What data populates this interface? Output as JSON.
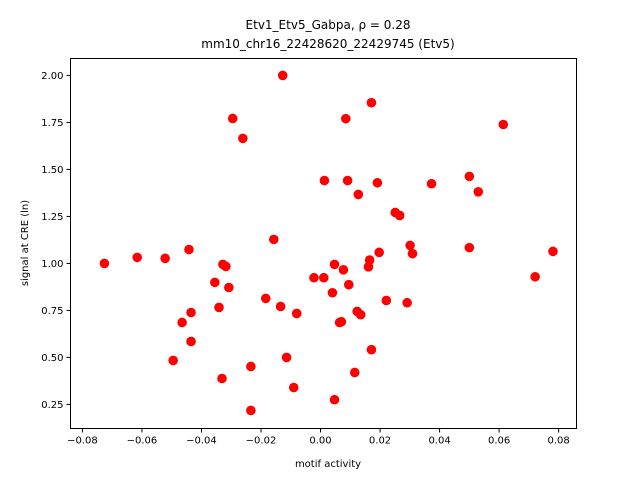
{
  "chart_data": {
    "type": "scatter",
    "title_line1": "Etv1_Etv5_Gabpa, ρ = 0.28",
    "title_line2": "mm10_chr16_22428620_22429745 (Etv5)",
    "xlabel": "motif activity",
    "ylabel": "signal at CRE (ln)",
    "xlim": [
      -0.084,
      0.086
    ],
    "ylim": [
      0.122,
      2.09
    ],
    "xticks": [
      "−0.08",
      "−0.06",
      "−0.04",
      "−0.02",
      "0.00",
      "0.02",
      "0.04",
      "0.06",
      "0.08"
    ],
    "xtick_values": [
      -0.08,
      -0.06,
      -0.04,
      -0.02,
      0,
      0.02,
      0.04,
      0.06,
      0.08
    ],
    "yticks": [
      "0.25",
      "0.50",
      "0.75",
      "1.00",
      "1.25",
      "1.50",
      "1.75",
      "2.00"
    ],
    "ytick_values": [
      0.25,
      0.5,
      0.75,
      1.0,
      1.25,
      1.5,
      1.75,
      2.0
    ],
    "grid": false,
    "marker_color": "#ff0000",
    "points": [
      [
        -0.0726,
        1.0
      ],
      [
        -0.0616,
        1.032
      ],
      [
        -0.0522,
        1.027
      ],
      [
        -0.0442,
        1.074
      ],
      [
        -0.0328,
        0.995
      ],
      [
        -0.0318,
        0.984
      ],
      [
        -0.0355,
        0.899
      ],
      [
        -0.0308,
        0.872
      ],
      [
        -0.0465,
        0.686
      ],
      [
        -0.0435,
        0.739
      ],
      [
        -0.0341,
        0.766
      ],
      [
        -0.0435,
        0.585
      ],
      [
        -0.0495,
        0.484
      ],
      [
        -0.0331,
        0.388
      ],
      [
        -0.0295,
        1.771
      ],
      [
        -0.0261,
        1.665
      ],
      [
        -0.0127,
        2.0
      ],
      [
        -0.0157,
        1.128
      ],
      [
        -0.0184,
        0.814
      ],
      [
        -0.0134,
        0.771
      ],
      [
        -0.008,
        0.734
      ],
      [
        -0.0114,
        0.5
      ],
      [
        -0.0234,
        0.452
      ],
      [
        -0.009,
        0.34
      ],
      [
        -0.0234,
        0.218
      ],
      [
        0.0171,
        1.855
      ],
      [
        0.0085,
        1.77
      ],
      [
        0.0614,
        1.739
      ],
      [
        0.0013,
        1.441
      ],
      [
        0.0091,
        1.441
      ],
      [
        0.0191,
        1.429
      ],
      [
        0.0127,
        1.367
      ],
      [
        0.0373,
        1.424
      ],
      [
        0.05,
        1.463
      ],
      [
        0.053,
        1.381
      ],
      [
        0.0251,
        1.271
      ],
      [
        0.0266,
        1.255
      ],
      [
        0.0301,
        1.096
      ],
      [
        0.0309,
        1.052
      ],
      [
        0.05,
        1.084
      ],
      [
        0.0781,
        1.064
      ],
      [
        0.0721,
        0.929
      ],
      [
        0.0197,
        1.059
      ],
      [
        0.0165,
        1.018
      ],
      [
        0.0161,
        0.982
      ],
      [
        0.0047,
        0.995
      ],
      [
        0.0077,
        0.966
      ],
      [
        -0.0022,
        0.924
      ],
      [
        0.0011,
        0.924
      ],
      [
        0.0095,
        0.887
      ],
      [
        0.004,
        0.844
      ],
      [
        0.0221,
        0.803
      ],
      [
        0.0291,
        0.791
      ],
      [
        0.0123,
        0.745
      ],
      [
        0.0135,
        0.727
      ],
      [
        0.0064,
        0.686
      ],
      [
        0.007,
        0.69
      ],
      [
        0.0171,
        0.541
      ],
      [
        0.0115,
        0.42
      ],
      [
        0.0047,
        0.275
      ]
    ]
  }
}
